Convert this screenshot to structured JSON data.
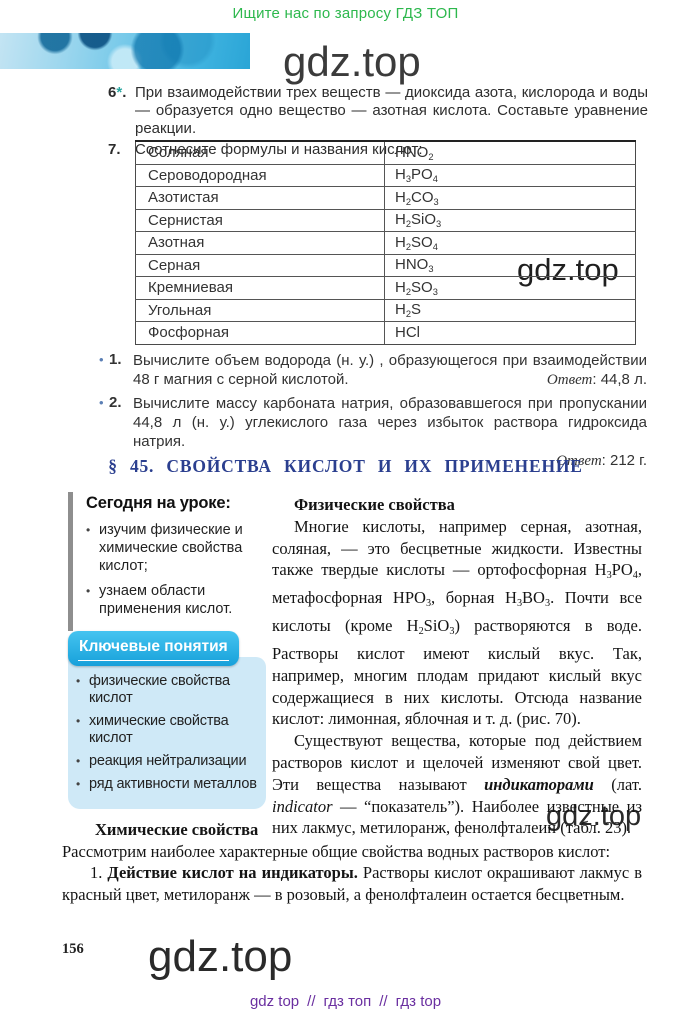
{
  "promo": {
    "text": "Ищите нас по запросу ГДЗ ТОП"
  },
  "watermark": {
    "text": "gdz.top"
  },
  "exercises": [
    {
      "number": "6",
      "star": "*",
      "suffix": ".",
      "text": "При взаимодействии трех веществ — диоксида азота, кислорода и воды — образуется одно вещество — азотная кислота. Составьте уравнение реакции."
    },
    {
      "number": "7.",
      "text": "Соотнесите формулы и названия кислот:"
    }
  ],
  "acid_table": {
    "rows": [
      {
        "name": "Соляная",
        "formula": "HNO_2"
      },
      {
        "name": "Сероводородная",
        "formula": "H_3PO_4"
      },
      {
        "name": "Азотистая",
        "formula": "H_2CO_3"
      },
      {
        "name": "Сернистая",
        "formula": "H_2SiO_3"
      },
      {
        "name": "Азотная",
        "formula": "H_2SO_4"
      },
      {
        "name": "Серная",
        "formula": "HNO_3"
      },
      {
        "name": "Кремниевая",
        "formula": "H_2SO_3"
      },
      {
        "name": "Угольная",
        "formula": "H_2S"
      },
      {
        "name": "Фосфорная",
        "formula": "HCl"
      }
    ]
  },
  "tasks": [
    {
      "number": "1.",
      "text": "Вычислите объем водорода (н. у.) , образующегося при взаимодействии 48 г магния с серной кислотой.",
      "answer_label": "Ответ",
      "answer_value": ": 44,8 л."
    },
    {
      "number": "2.",
      "text": "Вычислите массу карбоната натрия, образовавшегося при пропускании 44,8 л (н. у.) углекислого газа через избыток раствора гидроксида натрия.",
      "answer_label": "Ответ",
      "answer_value": ": 212 г."
    }
  ],
  "section": {
    "title": "§ 45. СВОЙСТВА КИСЛОТ И ИХ ПРИМЕНЕНИЕ"
  },
  "today_box": {
    "title": "Сегодня на уроке:",
    "items": [
      "изучим физические и химические свойства кислот;",
      "узнаем области применения кислот."
    ]
  },
  "key_concepts": {
    "title": "Ключевые понятия",
    "items": [
      "физические свойства кислот",
      "химические свойства кислот",
      "реакция нейтрализации",
      "ряд активности металлов"
    ]
  },
  "physical": {
    "heading": "Физические свойства",
    "para1": [
      {
        "t": "Многие кислоты, например серная, азотная, соляная, — это бесцветные жидкости. Известны также твердые кислоты — ортофосфорная "
      },
      {
        "f": "H_3PO_4"
      },
      {
        "t": ", метафосфорная "
      },
      {
        "f": "HPO_3"
      },
      {
        "t": ", борная "
      },
      {
        "f": "H_3BO_3"
      },
      {
        "t": ". Почти все кислоты (кроме "
      },
      {
        "f": "H_2SiO_3"
      },
      {
        "t": ") растворяются в воде. Растворы кислот имеют кислый вкус. Так, например, многим плодам придают кислый вкус содержащиеся в них кислоты. Отсюда название кислот: лимонная, яблочная и т. д. (рис. 70)."
      }
    ],
    "para2": [
      {
        "t": "Существуют вещества, которые под действием растворов кислот и щелочей изменяют свой цвет. Эти вещества называют "
      },
      {
        "bi": "индикаторами"
      },
      {
        "t": " (лат. "
      },
      {
        "i": "indicator"
      },
      {
        "t": " — “показатель”). Наиболее известные из них лакмус, метилоранж, фенолфталеин (табл. 23)."
      }
    ]
  },
  "chemical": {
    "heading": "Химические свойства",
    "para1": "Рассмотрим наиболее характерные общие свойства водных растворов кислот:",
    "item1": [
      {
        "t": "1. "
      },
      {
        "b": "Действие кислот на индикаторы."
      },
      {
        "t": " Растворы кислот окрашивают лакмус в красный цвет, метилоранж — в розовый, а фенолфталеин остается бесцветным."
      }
    ]
  },
  "footer": {
    "page_number": "156",
    "links": [
      "gdz top",
      "гдз топ",
      "гдз top"
    ],
    "separator": "//"
  }
}
